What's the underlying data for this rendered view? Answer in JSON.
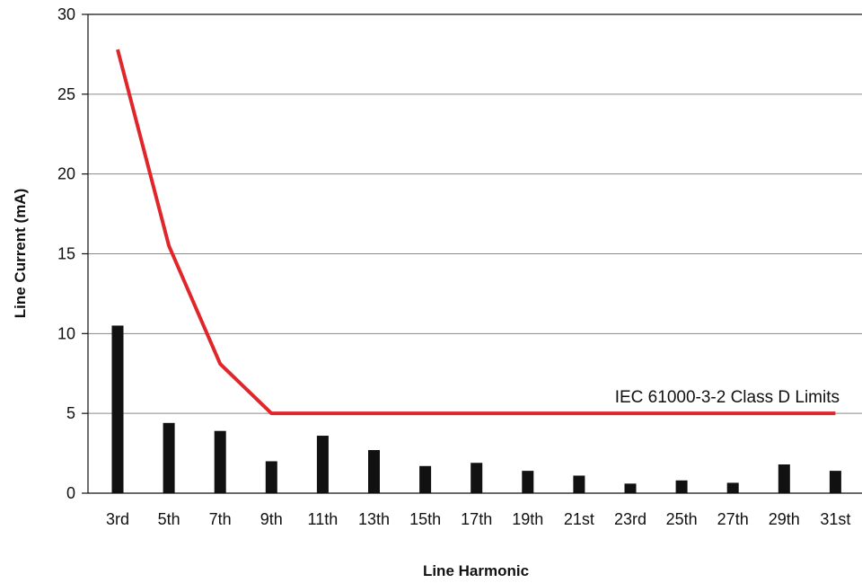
{
  "chart_data": {
    "type": "bar",
    "xlabel": "Line Harmonic",
    "ylabel": "Line Current (mA)",
    "ylim": [
      0,
      30
    ],
    "yticks": [
      0,
      5,
      10,
      15,
      20,
      25,
      30
    ],
    "grid": true,
    "categories": [
      "3rd",
      "5th",
      "7th",
      "9th",
      "11th",
      "13th",
      "15th",
      "17th",
      "19th",
      "21st",
      "23rd",
      "25th",
      "27th",
      "29th",
      "31st"
    ],
    "series": [
      {
        "type": "bar",
        "values": [
          10.5,
          4.4,
          3.9,
          2.0,
          3.6,
          2.7,
          1.7,
          1.9,
          1.4,
          1.1,
          0.6,
          0.8,
          0.65,
          1.8,
          1.4
        ],
        "color": "#111111"
      },
      {
        "type": "line",
        "name": "IEC 61000-3-2 Class D Limits",
        "values": [
          27.8,
          15.5,
          8.1,
          5.0,
          5.0,
          5.0,
          5.0,
          5.0,
          5.0,
          5.0,
          5.0,
          5.0,
          5.0,
          5.0,
          5.0
        ],
        "color": "#e0262b"
      }
    ],
    "annotations": [
      {
        "text": "IEC 61000-3-2 Class D Limits"
      }
    ]
  }
}
